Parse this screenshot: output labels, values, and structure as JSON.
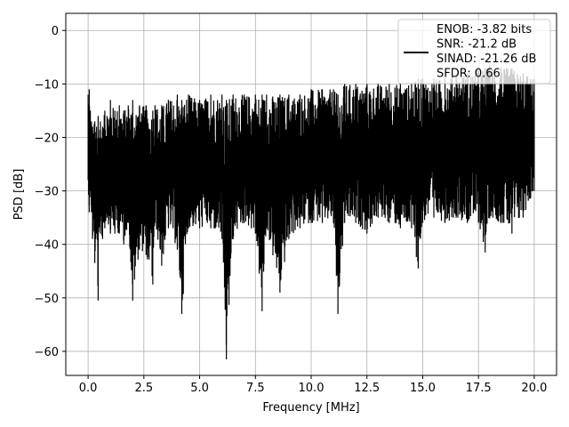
{
  "chart_data": {
    "type": "line",
    "xlabel": "Frequency [MHz]",
    "ylabel": "PSD [dB]",
    "xlim": [
      -1.0,
      21.0
    ],
    "ylim": [
      -64.5,
      3.2
    ],
    "x_ticks": [
      0.0,
      2.5,
      5.0,
      7.5,
      10.0,
      12.5,
      15.0,
      17.5,
      20.0
    ],
    "x_tick_labels": [
      "0.0",
      "2.5",
      "5.0",
      "7.5",
      "10.0",
      "12.5",
      "15.0",
      "17.5",
      "20.0"
    ],
    "y_ticks": [
      0,
      -10,
      -20,
      -30,
      -40,
      -50,
      -60
    ],
    "y_tick_labels": [
      "0",
      "−10",
      "−20",
      "−30",
      "−40",
      "−50",
      "−60"
    ],
    "grid": true,
    "legend_position": "top-right",
    "legend_lines": [
      "ENOB: -3.82 bits",
      "SNR: -21.2 dB",
      "SINAD: -21.26 dB",
      "SFDR: 0.66"
    ],
    "series": [
      {
        "color": "#000000",
        "x": [
          0.0,
          0.05,
          0.1,
          0.15,
          0.2,
          0.3,
          0.38,
          0.45,
          0.55,
          0.65,
          0.75,
          0.85,
          1.0,
          1.2,
          1.4,
          1.6,
          1.8,
          2.0,
          2.3,
          2.6,
          2.9,
          3.0,
          3.3,
          3.6,
          4.0,
          4.2,
          4.5,
          5.0,
          5.5,
          6.0,
          6.2,
          6.5,
          7.0,
          7.5,
          7.8,
          8.0,
          8.6,
          9.0,
          9.5,
          10.0,
          10.5,
          11.0,
          11.2,
          11.5,
          12.0,
          12.5,
          13.0,
          13.5,
          14.0,
          14.5,
          14.8,
          15.0,
          15.5,
          16.0,
          16.5,
          17.0,
          17.5,
          17.8,
          18.0,
          18.5,
          19.0,
          19.5,
          20.0
        ],
        "min": [
          -28,
          -34,
          -30,
          -34,
          -39,
          -43.5,
          -38,
          -50.5,
          -38,
          -39,
          -37,
          -35,
          -38,
          -38,
          -38,
          -40,
          -36,
          -50.5,
          -41,
          -42,
          -47.5,
          -36,
          -44,
          -37,
          -41,
          -53,
          -37,
          -37,
          -37,
          -39,
          -61.5,
          -39,
          -36,
          -38,
          -52.5,
          -37,
          -49,
          -39,
          -37,
          -36,
          -36,
          -36,
          -53,
          -36,
          -36,
          -38,
          -35,
          -36,
          -37,
          -37,
          -44.5,
          -36,
          -35,
          -36,
          -35,
          -36,
          -36,
          -41.5,
          -35,
          -36,
          -38,
          -35,
          -30
        ],
        "max": [
          -12,
          -11,
          -15,
          -17,
          -18,
          -17,
          -18,
          -16,
          -17,
          -18,
          -15,
          -16,
          -13,
          -15,
          -14,
          -15,
          -14,
          -13,
          -14,
          -14,
          -15,
          -14,
          -14,
          -13,
          -12,
          -13,
          -12,
          -13,
          -12,
          -12,
          -13,
          -12,
          -12,
          -12,
          -12,
          -12,
          -12,
          -12,
          -12,
          -11,
          -11,
          -11,
          -12,
          -10,
          -10,
          -10,
          -10,
          -10,
          -10,
          -10,
          -9,
          -9,
          -9,
          -9,
          -8,
          -8,
          -7,
          -7,
          -6.5,
          -7,
          -7,
          -8,
          -9
        ]
      }
    ]
  }
}
